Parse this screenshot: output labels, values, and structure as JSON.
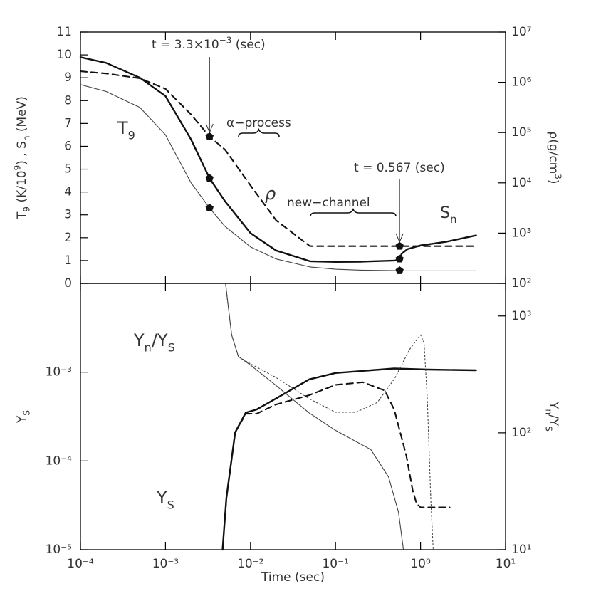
{
  "chart_data": [
    {
      "type": "line",
      "xlog": true,
      "xlim": [
        0.0001,
        10
      ],
      "ylog": false,
      "ylim": [
        0,
        11
      ],
      "yticks": [
        0,
        1,
        2,
        3,
        4,
        5,
        6,
        7,
        8,
        9,
        10,
        11
      ],
      "ylabel": [
        {
          "t": "T"
        },
        {
          "sub": "9"
        },
        {
          "t": " (K/10"
        },
        {
          "sup": "9"
        },
        {
          "t": ") , S"
        },
        {
          "sub": "n"
        },
        {
          "t": " (MeV)"
        }
      ],
      "y2log": true,
      "y2lim": [
        100,
        10000000
      ],
      "y2ticks": [
        {
          "value": 100,
          "label": "10²"
        },
        {
          "value": 1000,
          "label": "10³"
        },
        {
          "value": 10000,
          "label": "10⁴"
        },
        {
          "value": 100000,
          "label": "10⁵"
        },
        {
          "value": 1000000,
          "label": "10⁶"
        },
        {
          "value": 10000000,
          "label": "10⁷"
        }
      ],
      "y2label": [
        {
          "t": "ρ(g/cm"
        },
        {
          "sup": "3"
        },
        {
          "t": ")"
        }
      ],
      "x": [
        0.0001,
        0.0002,
        0.0005,
        0.001,
        0.002,
        0.0033,
        0.005,
        0.01,
        0.02,
        0.05,
        0.1,
        0.2,
        0.5,
        0.567,
        0.6,
        0.7,
        1,
        2,
        4.5
      ],
      "series": [
        {
          "color": "#444444",
          "style": "thin",
          "values": [
            8.7,
            8.4,
            7.7,
            6.5,
            4.4,
            3.3,
            2.5,
            1.6,
            1.07,
            0.72,
            0.62,
            0.58,
            0.56,
            0.56,
            0.55,
            0.55,
            0.55,
            0.55,
            0.55
          ]
        },
        {
          "color": "#111111",
          "style": "bold",
          "values": [
            9.9,
            9.65,
            9.0,
            8.2,
            6.3,
            4.6,
            3.6,
            2.2,
            1.44,
            0.97,
            0.94,
            0.95,
            1.0,
            1.07,
            1.3,
            1.5,
            1.66,
            1.82,
            2.1
          ]
        },
        {
          "color": "#111111",
          "style": "dashed",
          "axis": "y2",
          "values": [
            1660000,
            1500000,
            1200000,
            740000,
            230000,
            83000,
            46000,
            8900,
            1800,
            550,
            550,
            550,
            550,
            550,
            550,
            550,
            550,
            550,
            550
          ]
        }
      ],
      "annotations": [
        {
          "text": [
            {
              "t": "t = 3.3×10"
            },
            {
              "sup": "−3"
            },
            {
              "t": " (sec)"
            }
          ],
          "x": 0.0033
        },
        {
          "text": [
            {
              "t": "α−process"
            }
          ]
        },
        {
          "text": [
            {
              "t": "ρ"
            }
          ]
        },
        {
          "text": [
            {
              "t": "new−channel"
            }
          ]
        },
        {
          "text": [
            {
              "t": "t = 0.567 (sec)"
            }
          ],
          "x": 0.567
        },
        {
          "text": [
            {
              "t": "T"
            },
            {
              "sub": "9"
            }
          ]
        },
        {
          "text": [
            {
              "t": "S"
            },
            {
              "sub": "n"
            }
          ]
        }
      ]
    },
    {
      "type": "line",
      "xlog": true,
      "xlim": [
        0.0001,
        10
      ],
      "xticks": [
        {
          "value": 0.0001,
          "label": "10⁻⁴"
        },
        {
          "value": 0.001,
          "label": "10⁻³"
        },
        {
          "value": 0.01,
          "label": "10⁻²"
        },
        {
          "value": 0.1,
          "label": "10⁻¹"
        },
        {
          "value": 1,
          "label": "10⁰"
        },
        {
          "value": 10,
          "label": "10¹"
        }
      ],
      "xlabel": "Time (sec)",
      "ylog": true,
      "ylim": [
        1e-05,
        0.01
      ],
      "yticks": [
        {
          "value": 1e-05,
          "label": "10⁻⁵"
        },
        {
          "value": 0.0001,
          "label": "10⁻⁴"
        },
        {
          "value": 0.001,
          "label": "10⁻³"
        }
      ],
      "ylabel": [
        {
          "t": "Y"
        },
        {
          "sub": "S"
        }
      ],
      "y2log": true,
      "y2lim": [
        10,
        1900
      ],
      "y2ticks": [
        {
          "value": 10,
          "label": "10¹"
        },
        {
          "value": 100,
          "label": "10²"
        },
        {
          "value": 1000,
          "label": "10³"
        }
      ],
      "y2label": [
        {
          "t": "Y"
        },
        {
          "sub": "n"
        },
        {
          "t": "/Y"
        },
        {
          "sub": "S"
        }
      ],
      "series": [
        {
          "color": "#111111",
          "style": "bold",
          "x": [
            0.0047,
            0.0052,
            0.0066,
            0.0088,
            0.0118,
            0.0196,
            0.049,
            0.1,
            0.26,
            0.49,
            1.2,
            4.5
          ],
          "values": [
            1e-05,
            3.8e-05,
            0.00021,
            0.00035,
            0.00038,
            0.0005,
            0.00083,
            0.00098,
            0.00105,
            0.0011,
            0.00107,
            0.00105
          ]
        },
        {
          "color": "#111111",
          "style": "dashed",
          "x": [
            0.0047,
            0.0052,
            0.0066,
            0.0088,
            0.0118,
            0.0196,
            0.049,
            0.1,
            0.21,
            0.38,
            0.49,
            0.68,
            0.81,
            0.9,
            1.0,
            2.2
          ],
          "values": [
            1e-05,
            3.8e-05,
            0.00021,
            0.00034,
            0.00034,
            0.00043,
            0.00055,
            0.00072,
            0.00077,
            0.00062,
            0.00038,
            0.000115,
            4.6e-05,
            3.3e-05,
            3e-05,
            3e-05
          ]
        },
        {
          "color": "#444444",
          "style": "thin",
          "axis": "y2",
          "x": [
            0.0051,
            0.006,
            0.0072,
            0.01,
            0.0196,
            0.049,
            0.1,
            0.26,
            0.42,
            0.55,
            0.63
          ],
          "values": [
            1860,
            690,
            450,
            380,
            257,
            148,
            105,
            72,
            42,
            21,
            10
          ]
        },
        {
          "color": "#444444",
          "style": "dotted",
          "axis": "y2",
          "x": [
            0.0051,
            0.006,
            0.0072,
            0.01,
            0.0196,
            0.049,
            0.1,
            0.174,
            0.31,
            0.5,
            0.74,
            1.0,
            1.1,
            1.2,
            1.32,
            1.41
          ],
          "values": [
            1860,
            690,
            450,
            390,
            300,
            196,
            150,
            150,
            182,
            295,
            515,
            690,
            590,
            196,
            27,
            10
          ]
        }
      ],
      "annotations": [
        {
          "text": [
            {
              "t": "Y"
            },
            {
              "sub": "n"
            },
            {
              "t": "/Y"
            },
            {
              "sub": "S"
            }
          ]
        },
        {
          "text": [
            {
              "t": "Y"
            },
            {
              "sub": "S"
            }
          ]
        }
      ]
    }
  ]
}
